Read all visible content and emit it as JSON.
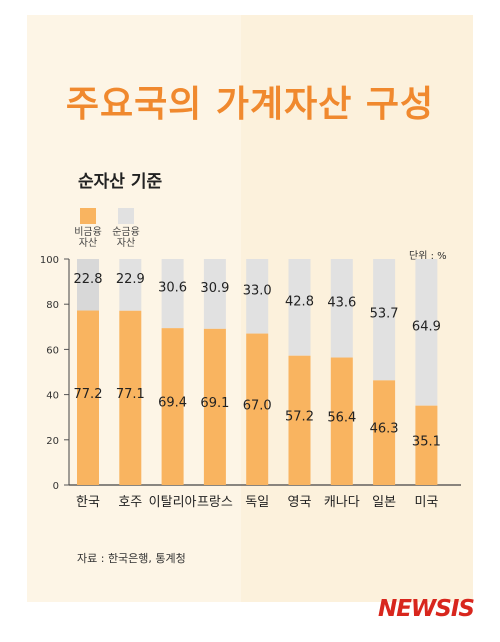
{
  "title": "주요국의 가계자산 구성",
  "subtitle": "순자산 기준",
  "legend": [
    {
      "label_line1": "비금융",
      "label_line2": "자산",
      "color": "#f9b460"
    },
    {
      "label_line1": "순금융",
      "label_line2": "자산",
      "color": "#e1e1e1"
    }
  ],
  "unit": "단위 : %",
  "source": "자료 : 한국은행, 통계청",
  "logo": "NEWSIS",
  "chart_data": {
    "type": "bar",
    "stacked": true,
    "categories": [
      "한국",
      "호주",
      "이탈리아",
      "프랑스",
      "독일",
      "영국",
      "캐나다",
      "일본",
      "미국"
    ],
    "series": [
      {
        "name": "비금융 자산",
        "color": "#f9b460",
        "values": [
          77.2,
          77.1,
          69.4,
          69.1,
          67.0,
          57.2,
          56.4,
          46.3,
          35.1
        ]
      },
      {
        "name": "순금융 자산",
        "color": "#e1e1e1",
        "values": [
          22.8,
          22.9,
          30.6,
          30.9,
          33.0,
          42.8,
          43.6,
          53.7,
          64.9
        ]
      }
    ],
    "value_labels": [
      [
        "77.2",
        "77.1",
        "69.4",
        "69.1",
        "67.0",
        "57.2",
        "56.4",
        "46.3",
        "35.1"
      ],
      [
        "22.8",
        "22.9",
        "30.6",
        "30.9",
        "33.0",
        "42.8",
        "43.6",
        "53.7",
        "64.9"
      ]
    ],
    "yticks": [
      0,
      20,
      40,
      60,
      80,
      100
    ],
    "ylim": [
      0,
      100
    ]
  }
}
